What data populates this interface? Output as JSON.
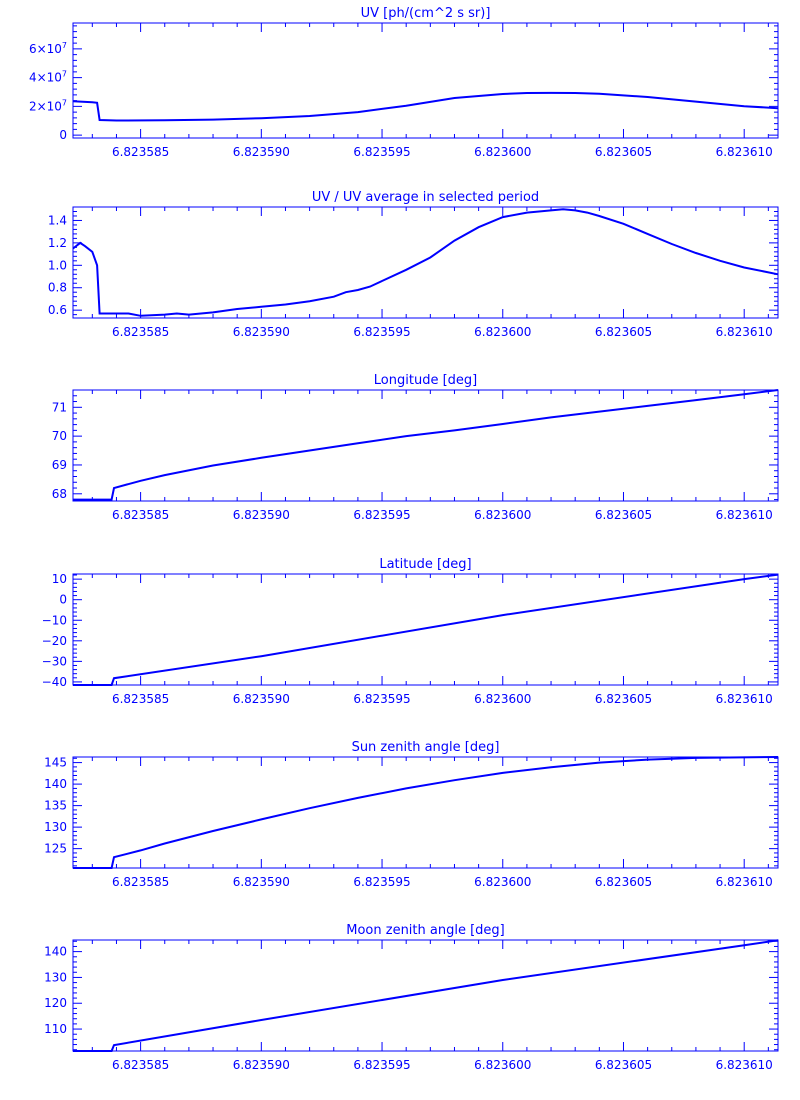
{
  "line_color": "#0000ff",
  "x_tick_labels": [
    "6.823585",
    "6.823590",
    "6.823595",
    "6.823600",
    "6.823605",
    "6.823610"
  ],
  "chart_data": [
    {
      "type": "line",
      "title": "UV [ph/(cm^2 s sr)]",
      "xlabel": "",
      "ylabel": "",
      "xlim": [
        6.8235822,
        6.8236114
      ],
      "ylim": [
        -2000000,
        78000000
      ],
      "x_ticks": [
        6.823585,
        6.82359,
        6.823595,
        6.8236,
        6.823605,
        6.82361
      ],
      "y_ticks": [
        0,
        20000000,
        40000000,
        60000000
      ],
      "y_tick_labels": [
        {
          "base": "0",
          "exp": ""
        },
        {
          "base": "2×10",
          "exp": "7"
        },
        {
          "base": "4×10",
          "exp": "7"
        },
        {
          "base": "6×10",
          "exp": "7"
        }
      ],
      "x": [
        6.8235822,
        6.8235826,
        6.823583,
        6.8235832,
        6.8235833,
        6.823584,
        6.823586,
        6.823588,
        6.82359,
        6.823592,
        6.823594,
        6.823596,
        6.823598,
        6.8236,
        6.823601,
        6.823602,
        6.823603,
        6.823604,
        6.823606,
        6.823608,
        6.82361,
        6.8236114
      ],
      "y": [
        23500000,
        23200000,
        22800000,
        22500000,
        10500000,
        10200000,
        10300000,
        10800000,
        11800000,
        13300000,
        16000000,
        20500000,
        25800000,
        28600000,
        29300000,
        29400000,
        29300000,
        28800000,
        26500000,
        23300000,
        20100000,
        18700000
      ]
    },
    {
      "type": "line",
      "title": "UV / UV average in selected period",
      "xlabel": "",
      "ylabel": "",
      "xlim": [
        6.8235822,
        6.8236114
      ],
      "ylim": [
        0.53,
        1.52
      ],
      "x_ticks": [
        6.823585,
        6.82359,
        6.823595,
        6.8236,
        6.823605,
        6.82361
      ],
      "y_ticks": [
        0.6,
        0.8,
        1.0,
        1.2,
        1.4
      ],
      "y_tick_labels": [
        {
          "base": "0.6"
        },
        {
          "base": "0.8"
        },
        {
          "base": "1.0"
        },
        {
          "base": "1.2"
        },
        {
          "base": "1.4"
        }
      ],
      "x": [
        6.8235822,
        6.8235825,
        6.8235827,
        6.823583,
        6.8235832,
        6.8235833,
        6.823584,
        6.8235845,
        6.823585,
        6.823586,
        6.8235865,
        6.823587,
        6.8235875,
        6.823588,
        6.823589,
        6.82359,
        6.823591,
        6.823592,
        6.823593,
        6.8235935,
        6.823594,
        6.8235945,
        6.823595,
        6.823596,
        6.823597,
        6.823598,
        6.823599,
        6.8236,
        6.823601,
        6.823602,
        6.8236025,
        6.823603,
        6.8236035,
        6.823604,
        6.823605,
        6.823606,
        6.823607,
        6.823608,
        6.823609,
        6.82361,
        6.8236114
      ],
      "y": [
        1.15,
        1.2,
        1.17,
        1.12,
        1.0,
        0.57,
        0.57,
        0.57,
        0.55,
        0.56,
        0.57,
        0.56,
        0.57,
        0.58,
        0.61,
        0.63,
        0.65,
        0.68,
        0.72,
        0.76,
        0.78,
        0.81,
        0.86,
        0.96,
        1.07,
        1.22,
        1.34,
        1.43,
        1.47,
        1.49,
        1.5,
        1.49,
        1.47,
        1.44,
        1.37,
        1.28,
        1.19,
        1.11,
        1.04,
        0.98,
        0.92
      ]
    },
    {
      "type": "line",
      "title": "Longitude [deg]",
      "xlabel": "",
      "ylabel": "",
      "xlim": [
        6.8235822,
        6.8236114
      ],
      "ylim": [
        67.75,
        71.6
      ],
      "x_ticks": [
        6.823585,
        6.82359,
        6.823595,
        6.8236,
        6.823605,
        6.82361
      ],
      "y_ticks": [
        68,
        69,
        70,
        71
      ],
      "y_tick_labels": [
        {
          "base": "68"
        },
        {
          "base": "69"
        },
        {
          "base": "70"
        },
        {
          "base": "71"
        }
      ],
      "x": [
        6.8235822,
        6.8235838,
        6.8235839,
        6.823585,
        6.823586,
        6.823588,
        6.82359,
        6.823592,
        6.823594,
        6.823596,
        6.823598,
        6.8236,
        6.823602,
        6.823604,
        6.823606,
        6.823608,
        6.82361,
        6.8236114
      ],
      "y": [
        67.8,
        67.8,
        68.2,
        68.45,
        68.65,
        68.98,
        69.25,
        69.5,
        69.75,
        70.0,
        70.2,
        70.42,
        70.65,
        70.85,
        71.05,
        71.25,
        71.45,
        71.6
      ]
    },
    {
      "type": "line",
      "title": "Latitude [deg]",
      "xlabel": "",
      "ylabel": "",
      "xlim": [
        6.8235822,
        6.8236114
      ],
      "ylim": [
        -41.5,
        12.5
      ],
      "x_ticks": [
        6.823585,
        6.82359,
        6.823595,
        6.8236,
        6.823605,
        6.82361
      ],
      "y_ticks": [
        -40,
        -30,
        -20,
        -10,
        0,
        10
      ],
      "y_tick_labels": [
        {
          "base": "−40"
        },
        {
          "base": "−30"
        },
        {
          "base": "−20"
        },
        {
          "base": "−10"
        },
        {
          "base": "0"
        },
        {
          "base": "10"
        }
      ],
      "x": [
        6.8235822,
        6.8235838,
        6.8235839,
        6.82359,
        6.8236,
        6.82361,
        6.8236114
      ],
      "y": [
        -41.5,
        -41.5,
        -38.2,
        -27.5,
        -7.5,
        10.0,
        12.2
      ]
    },
    {
      "type": "line",
      "title": "Sun zenith angle [deg]",
      "xlabel": "",
      "ylabel": "",
      "xlim": [
        6.8235822,
        6.8236114
      ],
      "ylim": [
        120.5,
        146.3
      ],
      "x_ticks": [
        6.823585,
        6.82359,
        6.823595,
        6.8236,
        6.823605,
        6.82361
      ],
      "y_ticks": [
        125,
        130,
        135,
        140,
        145
      ],
      "y_tick_labels": [
        {
          "base": "125"
        },
        {
          "base": "130"
        },
        {
          "base": "135"
        },
        {
          "base": "140"
        },
        {
          "base": "145"
        }
      ],
      "x": [
        6.8235822,
        6.8235838,
        6.8235839,
        6.823585,
        6.823586,
        6.823588,
        6.82359,
        6.823592,
        6.823594,
        6.823596,
        6.823598,
        6.8236,
        6.823602,
        6.823604,
        6.823606,
        6.823608,
        6.8236114
      ],
      "y": [
        120.5,
        120.5,
        123.0,
        124.6,
        126.2,
        129.1,
        131.8,
        134.4,
        136.8,
        139.0,
        140.9,
        142.6,
        143.9,
        145.0,
        145.7,
        146.1,
        146.3
      ]
    },
    {
      "type": "line",
      "title": "Moon zenith angle [deg]",
      "xlabel": "",
      "ylabel": "",
      "xlim": [
        6.8235822,
        6.8236114
      ],
      "ylim": [
        101.5,
        144.5
      ],
      "x_ticks": [
        6.823585,
        6.82359,
        6.823595,
        6.8236,
        6.823605,
        6.82361
      ],
      "y_ticks": [
        110,
        120,
        130,
        140
      ],
      "y_tick_labels": [
        {
          "base": "110"
        },
        {
          "base": "120"
        },
        {
          "base": "130"
        },
        {
          "base": "140"
        }
      ],
      "x": [
        6.8235822,
        6.8235838,
        6.8235839,
        6.82359,
        6.8236,
        6.82361,
        6.8236114
      ],
      "y": [
        101.5,
        101.5,
        103.8,
        113.5,
        129.0,
        142.5,
        144.4
      ]
    }
  ]
}
